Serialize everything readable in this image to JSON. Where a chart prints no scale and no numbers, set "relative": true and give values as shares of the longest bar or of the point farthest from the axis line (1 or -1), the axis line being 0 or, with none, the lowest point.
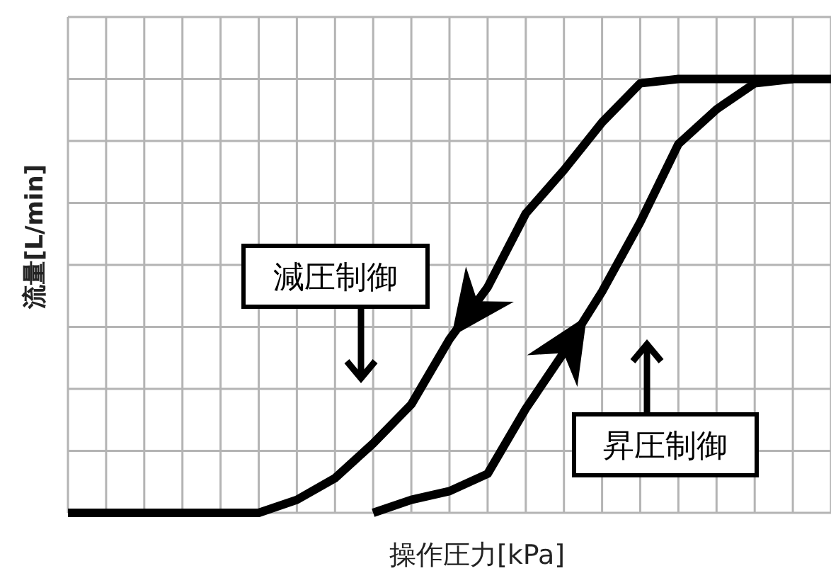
{
  "chart_data": {
    "type": "line",
    "xlabel": "操作圧力[kPa]",
    "ylabel": "流量[L/min]",
    "relative": true,
    "grid": true,
    "categories": [
      null,
      null,
      null,
      null,
      null,
      null,
      null,
      null,
      null,
      null,
      null,
      null,
      null,
      null,
      null,
      null,
      null,
      null,
      null,
      null,
      null
    ],
    "series": [
      {
        "name": "減圧制御",
        "color": "#000000",
        "values": [
          0,
          0,
          0,
          0,
          0,
          0,
          0.03,
          0.08,
          0.16,
          0.25,
          0.4,
          0.52,
          0.69,
          0.79,
          0.9,
          0.99,
          1,
          1,
          1,
          1,
          1
        ]
      },
      {
        "name": "昇圧制御",
        "color": "#000000",
        "values": [
          null,
          null,
          null,
          null,
          null,
          null,
          null,
          null,
          0,
          0.03,
          0.05,
          0.09,
          0.24,
          0.37,
          0.51,
          0.67,
          0.85,
          0.93,
          0.99,
          1,
          null
        ]
      }
    ]
  }
}
